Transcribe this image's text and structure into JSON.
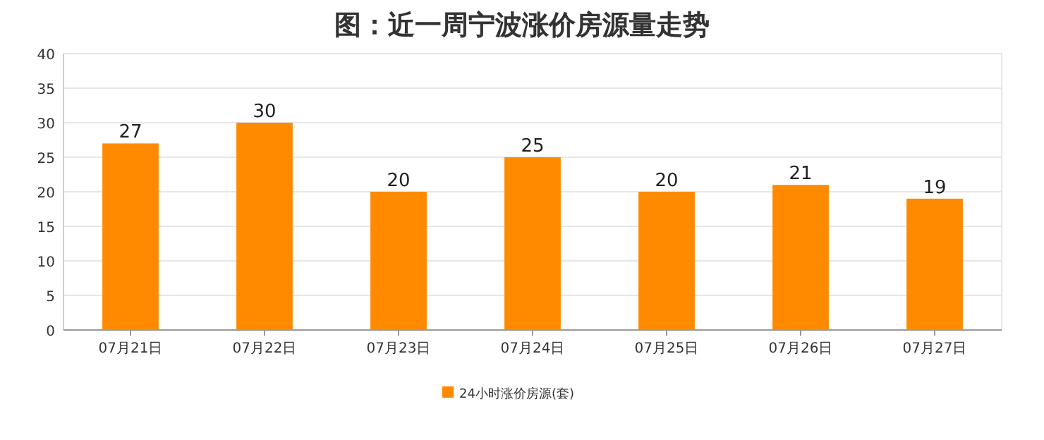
{
  "chart_data": {
    "type": "bar",
    "title": "图：近一周宁波涨价房源量走势",
    "categories": [
      "07月21日",
      "07月22日",
      "07月23日",
      "07月24日",
      "07月25日",
      "07月26日",
      "07月27日"
    ],
    "series": [
      {
        "name": "24小时涨价房源(套)",
        "color": "#ff8a00",
        "values": [
          27,
          30,
          20,
          25,
          20,
          21,
          19
        ]
      }
    ],
    "ylim": [
      0,
      40
    ],
    "yticks": [
      0,
      5,
      10,
      15,
      20,
      25,
      30,
      35,
      40
    ],
    "grid": "y",
    "data_labels": true,
    "legend": "bottom"
  }
}
